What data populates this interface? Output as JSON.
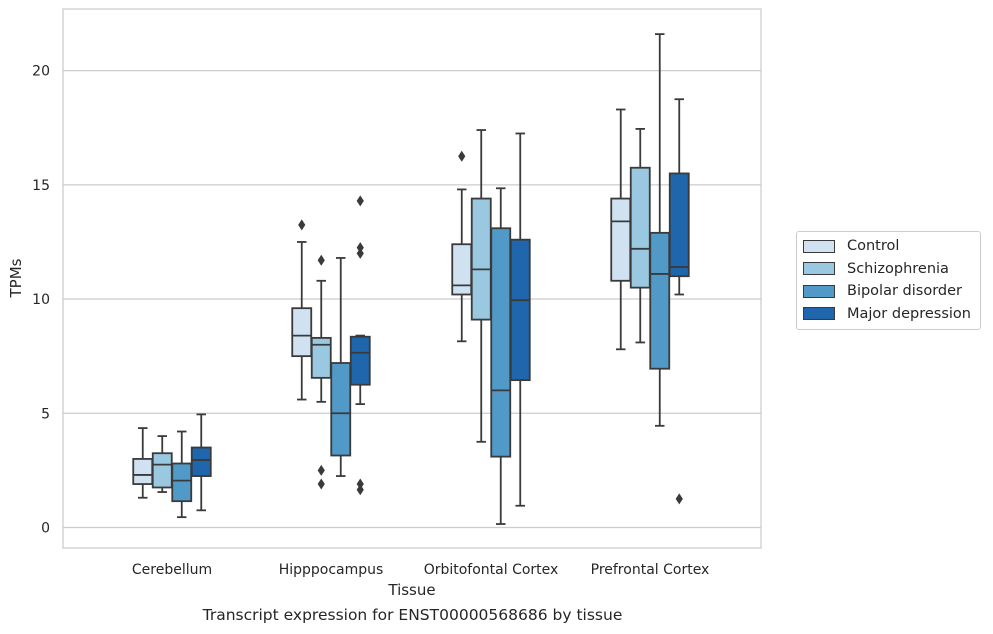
{
  "caption": "Transcript expression for ENST00000568686 by tissue",
  "chart_data": {
    "type": "box",
    "xlabel": "Tissue",
    "ylabel": "TPMs",
    "ylim": [
      -0.9,
      22.7
    ],
    "yticks": [
      0,
      5,
      10,
      15,
      20
    ],
    "grid": "horizontal",
    "legend_position": "right",
    "categories": [
      "Cerebellum",
      "Hipppocampus",
      "Orbitofontal Cortex",
      "Prefrontal Cortex"
    ],
    "series": [
      {
        "name": "Control",
        "color": "#d0e1f2",
        "boxes": [
          {
            "whislo": 1.3,
            "q1": 1.9,
            "med": 2.3,
            "q3": 3.0,
            "whishi": 4.35,
            "fliers": []
          },
          {
            "whislo": 5.6,
            "q1": 7.5,
            "med": 8.4,
            "q3": 9.6,
            "whishi": 12.5,
            "fliers": [
              13.25
            ]
          },
          {
            "whislo": 8.15,
            "q1": 10.2,
            "med": 10.6,
            "q3": 12.4,
            "whishi": 14.8,
            "fliers": [
              16.25
            ]
          },
          {
            "whislo": 7.8,
            "q1": 10.8,
            "med": 13.4,
            "q3": 14.4,
            "whishi": 18.3,
            "fliers": []
          }
        ]
      },
      {
        "name": "Schizophrenia",
        "color": "#9ac8e0",
        "boxes": [
          {
            "whislo": 1.55,
            "q1": 1.75,
            "med": 2.75,
            "q3": 3.25,
            "whishi": 4.0,
            "fliers": []
          },
          {
            "whislo": 5.5,
            "q1": 6.55,
            "med": 8.0,
            "q3": 8.3,
            "whishi": 10.8,
            "fliers": [
              11.7,
              2.5,
              1.9
            ]
          },
          {
            "whislo": 3.75,
            "q1": 9.1,
            "med": 11.3,
            "q3": 14.4,
            "whishi": 17.4,
            "fliers": []
          },
          {
            "whislo": 8.1,
            "q1": 10.5,
            "med": 12.2,
            "q3": 15.75,
            "whishi": 17.45,
            "fliers": []
          }
        ]
      },
      {
        "name": "Bipolar disorder",
        "color": "#5199c7",
        "boxes": [
          {
            "whislo": 0.45,
            "q1": 1.15,
            "med": 2.05,
            "q3": 2.8,
            "whishi": 4.2,
            "fliers": []
          },
          {
            "whislo": 2.25,
            "q1": 3.15,
            "med": 5.0,
            "q3": 7.2,
            "whishi": 11.8,
            "fliers": []
          },
          {
            "whislo": 0.15,
            "q1": 3.1,
            "med": 6.0,
            "q3": 13.1,
            "whishi": 14.85,
            "fliers": []
          },
          {
            "whislo": 4.45,
            "q1": 6.95,
            "med": 11.1,
            "q3": 12.9,
            "whishi": 21.6,
            "fliers": []
          }
        ]
      },
      {
        "name": "Major depression",
        "color": "#2066ac",
        "boxes": [
          {
            "whislo": 0.75,
            "q1": 2.25,
            "med": 2.95,
            "q3": 3.5,
            "whishi": 4.95,
            "fliers": []
          },
          {
            "whislo": 5.4,
            "q1": 6.25,
            "med": 7.65,
            "q3": 8.35,
            "whishi": 8.4,
            "fliers": [
              14.3,
              12.25,
              12.0,
              1.9,
              1.65
            ]
          },
          {
            "whislo": 0.95,
            "q1": 6.45,
            "med": 9.95,
            "q3": 12.6,
            "whishi": 17.25,
            "fliers": []
          },
          {
            "whislo": 10.2,
            "q1": 11.0,
            "med": 11.4,
            "q3": 15.5,
            "whishi": 18.75,
            "fliers": [
              1.25
            ]
          }
        ]
      }
    ]
  }
}
